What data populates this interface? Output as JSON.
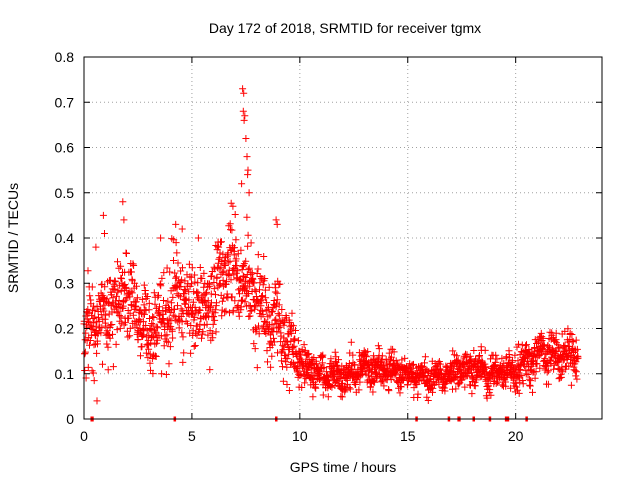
{
  "chart_data": {
    "type": "scatter",
    "title": "Day 172 of 2018, SRMTID for receiver tgmx",
    "xlabel": "GPS time / hours",
    "ylabel": "SRMTID / TECUs",
    "xlim": [
      0,
      24
    ],
    "ylim": [
      0,
      0.8
    ],
    "grid": true,
    "marker": "plus",
    "color": "#ff0000",
    "x_ticks": [
      "0",
      "5",
      "10",
      "15",
      "20"
    ],
    "y_ticks": [
      "0",
      "0.1",
      "0.2",
      "0.3",
      "0.4",
      "0.5",
      "0.6",
      "0.7",
      "0.8"
    ],
    "trend": [
      {
        "x": 0.0,
        "y": 0.19,
        "spread": 0.08
      },
      {
        "x": 0.5,
        "y": 0.22,
        "spread": 0.08
      },
      {
        "x": 1.0,
        "y": 0.23,
        "spread": 0.09
      },
      {
        "x": 1.5,
        "y": 0.26,
        "spread": 0.09
      },
      {
        "x": 2.0,
        "y": 0.29,
        "spread": 0.09
      },
      {
        "x": 2.5,
        "y": 0.24,
        "spread": 0.08
      },
      {
        "x": 3.0,
        "y": 0.19,
        "spread": 0.07
      },
      {
        "x": 3.5,
        "y": 0.22,
        "spread": 0.08
      },
      {
        "x": 4.0,
        "y": 0.24,
        "spread": 0.09
      },
      {
        "x": 4.5,
        "y": 0.27,
        "spread": 0.09
      },
      {
        "x": 5.0,
        "y": 0.26,
        "spread": 0.09
      },
      {
        "x": 5.5,
        "y": 0.25,
        "spread": 0.09
      },
      {
        "x": 6.0,
        "y": 0.28,
        "spread": 0.09
      },
      {
        "x": 6.5,
        "y": 0.31,
        "spread": 0.09
      },
      {
        "x": 7.0,
        "y": 0.32,
        "spread": 0.09
      },
      {
        "x": 7.5,
        "y": 0.3,
        "spread": 0.09
      },
      {
        "x": 8.0,
        "y": 0.27,
        "spread": 0.09
      },
      {
        "x": 8.5,
        "y": 0.22,
        "spread": 0.08
      },
      {
        "x": 9.0,
        "y": 0.21,
        "spread": 0.08
      },
      {
        "x": 9.5,
        "y": 0.17,
        "spread": 0.07
      },
      {
        "x": 10.0,
        "y": 0.12,
        "spread": 0.04
      },
      {
        "x": 11.0,
        "y": 0.1,
        "spread": 0.035
      },
      {
        "x": 12.0,
        "y": 0.095,
        "spread": 0.035
      },
      {
        "x": 13.0,
        "y": 0.11,
        "spread": 0.035
      },
      {
        "x": 14.0,
        "y": 0.11,
        "spread": 0.035
      },
      {
        "x": 15.0,
        "y": 0.1,
        "spread": 0.035
      },
      {
        "x": 16.0,
        "y": 0.09,
        "spread": 0.03
      },
      {
        "x": 17.0,
        "y": 0.1,
        "spread": 0.03
      },
      {
        "x": 18.0,
        "y": 0.11,
        "spread": 0.035
      },
      {
        "x": 19.0,
        "y": 0.1,
        "spread": 0.035
      },
      {
        "x": 20.0,
        "y": 0.11,
        "spread": 0.04
      },
      {
        "x": 21.0,
        "y": 0.14,
        "spread": 0.045
      },
      {
        "x": 22.0,
        "y": 0.15,
        "spread": 0.045
      },
      {
        "x": 22.8,
        "y": 0.15,
        "spread": 0.045
      }
    ],
    "outliers": [
      {
        "x": 7.35,
        "y": 0.73
      },
      {
        "x": 7.4,
        "y": 0.72
      },
      {
        "x": 7.38,
        "y": 0.68
      },
      {
        "x": 7.45,
        "y": 0.67
      },
      {
        "x": 7.42,
        "y": 0.66
      },
      {
        "x": 7.5,
        "y": 0.62
      },
      {
        "x": 7.55,
        "y": 0.58
      },
      {
        "x": 7.6,
        "y": 0.55
      },
      {
        "x": 7.58,
        "y": 0.54
      },
      {
        "x": 7.3,
        "y": 0.52
      },
      {
        "x": 7.65,
        "y": 0.5
      },
      {
        "x": 6.9,
        "y": 0.47
      },
      {
        "x": 1.8,
        "y": 0.48
      },
      {
        "x": 1.85,
        "y": 0.44
      },
      {
        "x": 0.9,
        "y": 0.45
      },
      {
        "x": 0.95,
        "y": 0.41
      },
      {
        "x": 8.9,
        "y": 0.44
      },
      {
        "x": 8.95,
        "y": 0.43
      },
      {
        "x": 4.25,
        "y": 0.43
      },
      {
        "x": 4.55,
        "y": 0.42
      },
      {
        "x": 3.55,
        "y": 0.4
      },
      {
        "x": 5.3,
        "y": 0.4
      },
      {
        "x": 0.55,
        "y": 0.38
      },
      {
        "x": 0.6,
        "y": 0.04
      }
    ],
    "gap_markers": [
      {
        "x_start": 0.3,
        "x_end": 0.45
      },
      {
        "x_start": 4.15,
        "x_end": 4.25
      },
      {
        "x_start": 8.85,
        "x_end": 8.95
      },
      {
        "x_start": 15.35,
        "x_end": 15.45
      },
      {
        "x_start": 16.85,
        "x_end": 16.95
      },
      {
        "x_start": 17.3,
        "x_end": 17.45
      },
      {
        "x_start": 18.0,
        "x_end": 18.05
      },
      {
        "x_start": 18.75,
        "x_end": 18.85
      },
      {
        "x_start": 19.5,
        "x_end": 19.7
      },
      {
        "x_start": 20.45,
        "x_end": 20.55
      }
    ],
    "sample_step_hours": 0.011,
    "data_end_x": 22.9
  }
}
